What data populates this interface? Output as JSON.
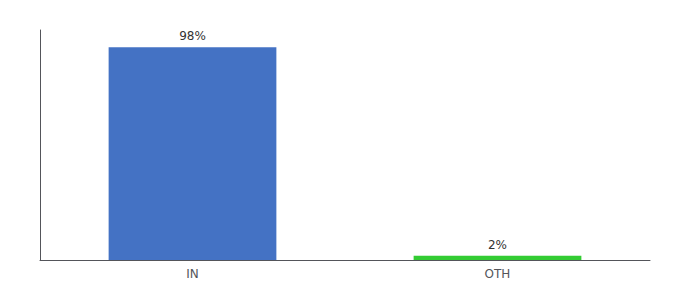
{
  "chart_data": {
    "type": "bar",
    "categories": [
      "IN",
      "OTH"
    ],
    "values": [
      98,
      2
    ],
    "value_labels": [
      "98%",
      "2%"
    ],
    "colors": [
      "#4472c4",
      "#33cc33"
    ],
    "ylim": [
      0,
      106
    ],
    "data_labels": true,
    "tick_labels": "x",
    "grid": false
  }
}
